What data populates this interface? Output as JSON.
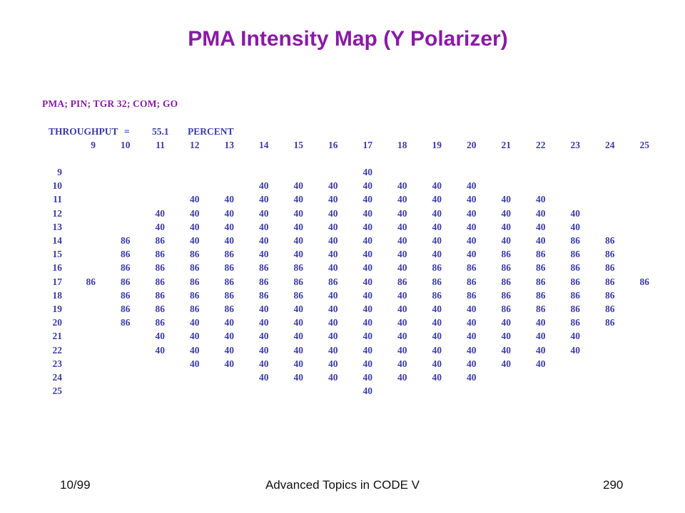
{
  "slide": {
    "title": "PMA Intensity Map (Y Polarizer)",
    "command": "PMA; PIN; TGR 32; COM; GO",
    "throughput": {
      "label": "THROUGHPUT",
      "equals": "=",
      "value": "55.1",
      "unit": "PERCENT"
    }
  },
  "chart_data": {
    "type": "table",
    "columns": [
      "9",
      "10",
      "11",
      "12",
      "13",
      "14",
      "15",
      "16",
      "17",
      "18",
      "19",
      "20",
      "21",
      "22",
      "23",
      "24",
      "25"
    ],
    "rows": [
      {
        "label": "9",
        "values": [
          "",
          "",
          "",
          "",
          "",
          "",
          "",
          "",
          "40",
          "",
          "",
          "",
          "",
          "",
          "",
          "",
          ""
        ]
      },
      {
        "label": "10",
        "values": [
          "",
          "",
          "",
          "",
          "",
          "40",
          "40",
          "40",
          "40",
          "40",
          "40",
          "40",
          "",
          "",
          "",
          "",
          ""
        ]
      },
      {
        "label": "11",
        "values": [
          "",
          "",
          "",
          "40",
          "40",
          "40",
          "40",
          "40",
          "40",
          "40",
          "40",
          "40",
          "40",
          "40",
          "",
          "",
          ""
        ]
      },
      {
        "label": "12",
        "values": [
          "",
          "",
          "40",
          "40",
          "40",
          "40",
          "40",
          "40",
          "40",
          "40",
          "40",
          "40",
          "40",
          "40",
          "40",
          "",
          ""
        ]
      },
      {
        "label": "13",
        "values": [
          "",
          "",
          "40",
          "40",
          "40",
          "40",
          "40",
          "40",
          "40",
          "40",
          "40",
          "40",
          "40",
          "40",
          "40",
          "",
          ""
        ]
      },
      {
        "label": "14",
        "values": [
          "",
          "86",
          "86",
          "40",
          "40",
          "40",
          "40",
          "40",
          "40",
          "40",
          "40",
          "40",
          "40",
          "40",
          "86",
          "86",
          ""
        ]
      },
      {
        "label": "15",
        "values": [
          "",
          "86",
          "86",
          "86",
          "86",
          "40",
          "40",
          "40",
          "40",
          "40",
          "40",
          "40",
          "86",
          "86",
          "86",
          "86",
          ""
        ]
      },
      {
        "label": "16",
        "values": [
          "",
          "86",
          "86",
          "86",
          "86",
          "86",
          "86",
          "40",
          "40",
          "40",
          "86",
          "86",
          "86",
          "86",
          "86",
          "86",
          ""
        ]
      },
      {
        "label": "17",
        "values": [
          "86",
          "86",
          "86",
          "86",
          "86",
          "86",
          "86",
          "86",
          "40",
          "86",
          "86",
          "86",
          "86",
          "86",
          "86",
          "86",
          "86"
        ]
      },
      {
        "label": "18",
        "values": [
          "",
          "86",
          "86",
          "86",
          "86",
          "86",
          "86",
          "40",
          "40",
          "40",
          "86",
          "86",
          "86",
          "86",
          "86",
          "86",
          ""
        ]
      },
      {
        "label": "19",
        "values": [
          "",
          "86",
          "86",
          "86",
          "86",
          "40",
          "40",
          "40",
          "40",
          "40",
          "40",
          "40",
          "86",
          "86",
          "86",
          "86",
          ""
        ]
      },
      {
        "label": "20",
        "values": [
          "",
          "86",
          "86",
          "40",
          "40",
          "40",
          "40",
          "40",
          "40",
          "40",
          "40",
          "40",
          "40",
          "40",
          "86",
          "86",
          ""
        ]
      },
      {
        "label": "21",
        "values": [
          "",
          "",
          "40",
          "40",
          "40",
          "40",
          "40",
          "40",
          "40",
          "40",
          "40",
          "40",
          "40",
          "40",
          "40",
          "",
          ""
        ]
      },
      {
        "label": "22",
        "values": [
          "",
          "",
          "40",
          "40",
          "40",
          "40",
          "40",
          "40",
          "40",
          "40",
          "40",
          "40",
          "40",
          "40",
          "40",
          "",
          ""
        ]
      },
      {
        "label": "23",
        "values": [
          "",
          "",
          "",
          "40",
          "40",
          "40",
          "40",
          "40",
          "40",
          "40",
          "40",
          "40",
          "40",
          "40",
          "",
          "",
          ""
        ]
      },
      {
        "label": "24",
        "values": [
          "",
          "",
          "",
          "",
          "",
          "40",
          "40",
          "40",
          "40",
          "40",
          "40",
          "40",
          "",
          "",
          "",
          "",
          ""
        ]
      },
      {
        "label": "25",
        "values": [
          "",
          "",
          "",
          "",
          "",
          "",
          "",
          "",
          "40",
          "",
          "",
          "",
          "",
          "",
          "",
          "",
          ""
        ]
      }
    ]
  },
  "footer": {
    "date": "10/99",
    "course": "Advanced Topics in CODE V",
    "page": "290"
  }
}
